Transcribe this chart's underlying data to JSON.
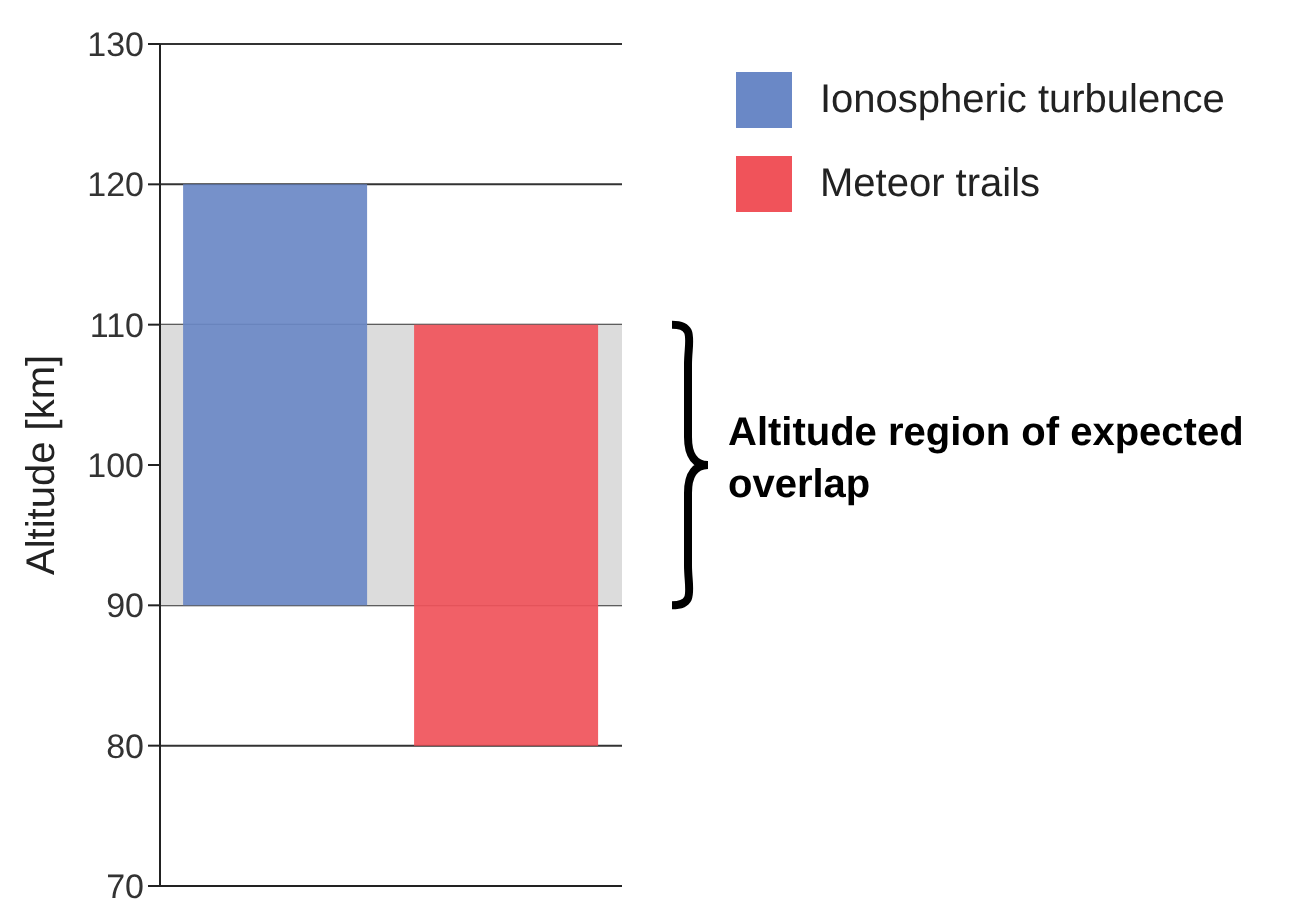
{
  "chart_data": {
    "type": "bar",
    "ylabel": "Altitude [km]",
    "categories": [
      null,
      null
    ],
    "series": [
      {
        "name": "Ionospheric turbulence",
        "color": "#6a88c6",
        "values": [
          30,
          null
        ],
        "base": [
          90,
          null
        ]
      },
      {
        "name": "Meteor trails",
        "color": "#f0535a",
        "values": [
          null,
          30
        ],
        "base": [
          null,
          80
        ]
      }
    ],
    "ylim": [
      70,
      130
    ],
    "yticks": [
      70,
      80,
      90,
      100,
      110,
      120,
      130
    ],
    "grid": "y",
    "legend": "top right",
    "bands": [
      {
        "axis": "y",
        "from": 90,
        "to": 110,
        "label": "Altitude region of expected overlap",
        "color": "#dcdcdc"
      }
    ]
  }
}
